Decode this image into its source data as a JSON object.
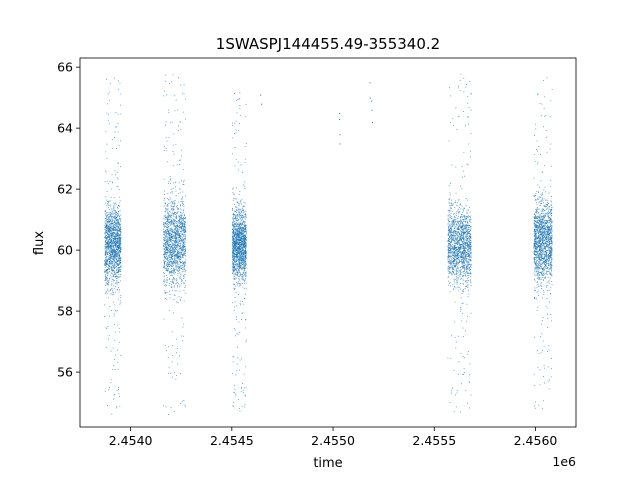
{
  "chart_data": {
    "type": "scatter",
    "title": "1SWASPJ144455.49-355340.2",
    "xlabel": "time",
    "ylabel": "flux",
    "x_offset_label": "1e6",
    "x_ticks": [
      2454000,
      2454500,
      2455000,
      2455500,
      2456000
    ],
    "x_tick_labels": [
      "2.4540",
      "2.4545",
      "2.4550",
      "2.4555",
      "2.4560"
    ],
    "y_ticks": [
      56,
      58,
      60,
      62,
      64,
      66
    ],
    "y_tick_labels": [
      "56",
      "58",
      "60",
      "62",
      "64",
      "66"
    ],
    "xlim": [
      2453750,
      2456200
    ],
    "ylim": [
      54.2,
      66.3
    ],
    "grid": false,
    "point_color": "#1f77b4",
    "series": [
      {
        "clusters": [
          {
            "x_range": [
              2453870,
              2453950
            ],
            "y_center": 60.2,
            "y_core_halfwidth": 1.6,
            "y_extent": [
              54.6,
              65.8
            ]
          },
          {
            "x_range": [
              2454160,
              2454270
            ],
            "y_center": 60.3,
            "y_core_halfwidth": 1.8,
            "y_extent": [
              54.6,
              65.8
            ]
          },
          {
            "x_range": [
              2454500,
              2454570
            ],
            "y_center": 60.2,
            "y_core_halfwidth": 1.5,
            "y_extent": [
              54.7,
              65.2
            ]
          },
          {
            "x_range": [
              2455565,
              2455680
            ],
            "y_center": 60.2,
            "y_core_halfwidth": 1.6,
            "y_extent": [
              54.7,
              65.8
            ]
          },
          {
            "x_range": [
              2455990,
              2456080
            ],
            "y_center": 60.3,
            "y_core_halfwidth": 1.7,
            "y_extent": [
              54.6,
              65.7
            ]
          }
        ],
        "sparse_points": [
          {
            "x": 2454640,
            "y": 65.1
          },
          {
            "x": 2454645,
            "y": 64.8
          },
          {
            "x": 2455030,
            "y": 64.5
          },
          {
            "x": 2455030,
            "y": 64.3
          },
          {
            "x": 2455032,
            "y": 63.8
          },
          {
            "x": 2455032,
            "y": 63.5
          },
          {
            "x": 2455180,
            "y": 65.5
          },
          {
            "x": 2455182,
            "y": 65.0
          },
          {
            "x": 2455190,
            "y": 64.6
          },
          {
            "x": 2455192,
            "y": 64.2
          },
          {
            "x": 2455188,
            "y": 64.9
          }
        ]
      }
    ]
  }
}
